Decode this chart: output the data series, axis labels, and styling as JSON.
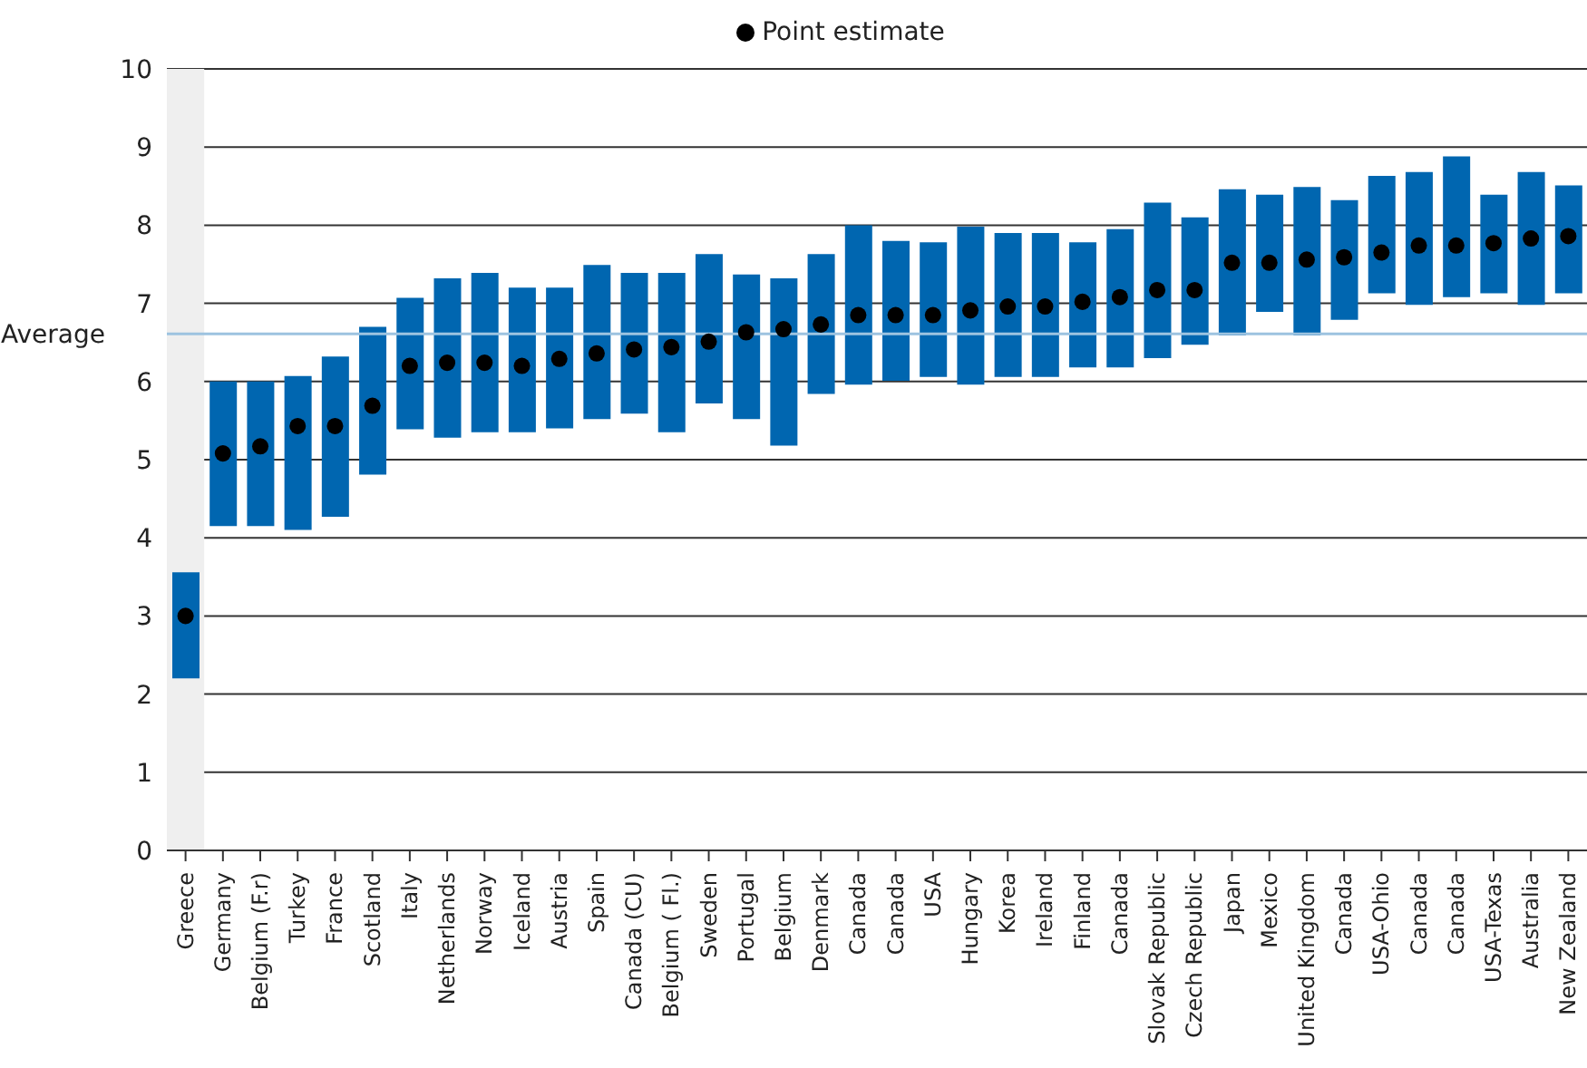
{
  "chart_data": {
    "type": "bar",
    "categories": [
      "Greece",
      "Germany",
      "Belgium (F.r)",
      "Turkey",
      "France",
      "Scotland",
      "Italy",
      "Netherlands",
      "Norway",
      "Iceland",
      "Austria",
      "Spain",
      "Canada (CU)",
      "Belgium ( Fl.)",
      "Sweden",
      "Portugal",
      "Belgium",
      "Denmark",
      "Canada",
      "Canada",
      "USA",
      "Hungary",
      "Korea",
      "Ireland",
      "Finland",
      "Canada",
      "Slovak Republic",
      "Czech Republic",
      "Japan",
      "Mexico",
      "United Kingdom",
      "Canada",
      "USA-Ohio",
      "Canada",
      "Canada",
      "USA-Texas",
      "Australia",
      "New Zealand"
    ],
    "series": [
      {
        "color": "#0066b0",
        "base": [
          2.2,
          4.15,
          4.15,
          4.1,
          4.27,
          4.81,
          5.39,
          5.28,
          5.35,
          5.35,
          5.4,
          5.52,
          5.59,
          5.35,
          5.72,
          5.52,
          5.18,
          5.84,
          5.96,
          6.01,
          6.06,
          5.96,
          6.06,
          6.06,
          6.18,
          6.18,
          6.3,
          6.47,
          6.59,
          6.89,
          6.59,
          6.79,
          7.13,
          6.98,
          7.08,
          7.13,
          6.98,
          7.13
        ],
        "values": [
          1.36,
          1.85,
          1.85,
          1.97,
          2.05,
          1.89,
          1.68,
          2.04,
          2.04,
          1.85,
          1.8,
          1.97,
          1.8,
          2.04,
          1.91,
          1.85,
          2.14,
          1.79,
          2.04,
          1.79,
          1.72,
          2.02,
          1.84,
          1.84,
          1.6,
          1.77,
          1.99,
          1.63,
          1.87,
          1.5,
          1.9,
          1.53,
          1.5,
          1.7,
          1.8,
          1.26,
          1.7,
          1.38
        ]
      },
      {
        "type": "scatter",
        "name": "Point estimate",
        "color": "#000000",
        "values": [
          3.0,
          5.08,
          5.17,
          5.43,
          5.43,
          5.69,
          6.2,
          6.24,
          6.24,
          6.2,
          6.29,
          6.36,
          6.41,
          6.44,
          6.51,
          6.63,
          6.67,
          6.73,
          6.85,
          6.85,
          6.85,
          6.91,
          6.96,
          6.96,
          7.02,
          7.08,
          7.17,
          7.17,
          7.52,
          7.52,
          7.56,
          7.59,
          7.65,
          7.74,
          7.74,
          7.77,
          7.83,
          7.86
        ]
      }
    ],
    "ylim": [
      0,
      10
    ],
    "yticks": [
      0,
      1,
      2,
      3,
      4,
      5,
      6,
      7,
      8,
      9,
      10
    ],
    "grid": "y",
    "legend": "top",
    "marker": "circle",
    "ref_lines": [
      {
        "axis": "y",
        "value": 6.61,
        "label": "Average",
        "color": "#9dc3e0"
      }
    ],
    "bands": [
      {
        "axis": "x",
        "from": "Greece",
        "to": "Greece",
        "color": "#efefef"
      }
    ]
  }
}
